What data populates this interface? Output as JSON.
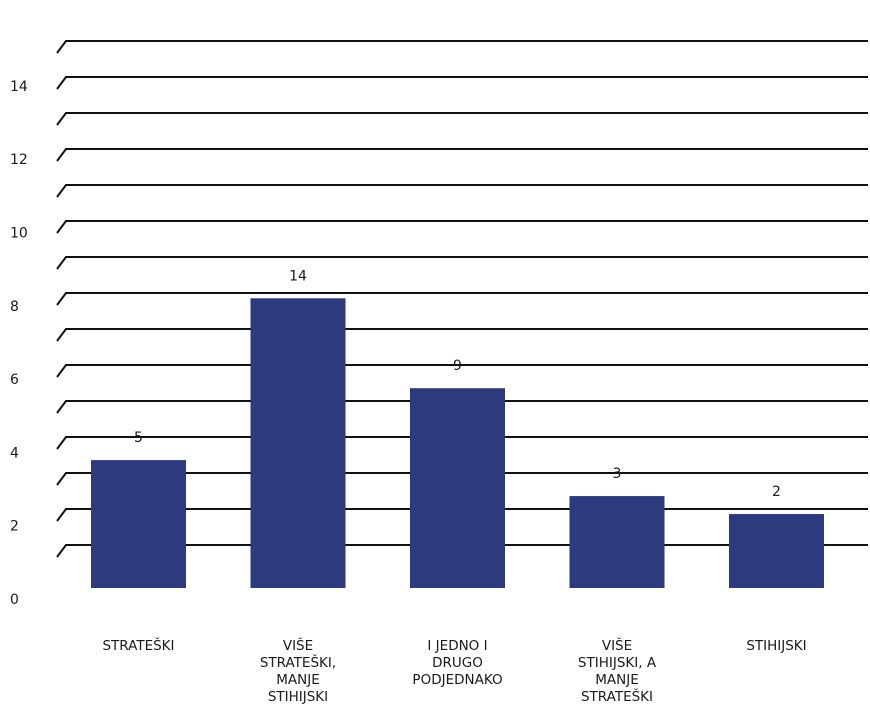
{
  "chart_data": {
    "type": "bar",
    "title": "",
    "xlabel": "",
    "ylabel": "",
    "categories": [
      [
        "STRATEŠKI"
      ],
      [
        "VIŠE",
        "STRATEŠKI,",
        "MANJE",
        "STIHIJSKI"
      ],
      [
        "I JEDNO I",
        "DRUGO",
        "PODJEDNAKO"
      ],
      [
        "VIŠE",
        "STIHIJSKI, A",
        "MANJE",
        "STRATEŠKI"
      ],
      [
        "STIHIJSKI"
      ]
    ],
    "values": [
      5,
      14,
      9,
      3,
      2
    ],
    "ylim": [
      0,
      14
    ],
    "yticks": [
      0,
      2,
      4,
      6,
      8,
      10,
      12,
      14
    ],
    "grid": true,
    "legend": "none",
    "colors": {
      "bar": "#2e3a7e",
      "grid": "#111111",
      "text": "#1a1a1a"
    }
  }
}
